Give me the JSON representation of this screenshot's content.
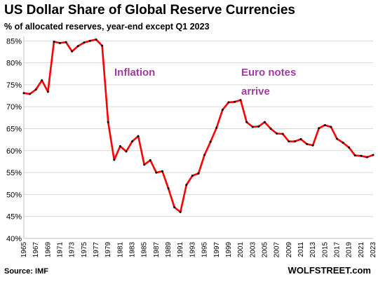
{
  "title": "US Dollar Share of Global  Reserve Currencies",
  "subtitle": "% of allocated reserves, year-end except Q1 2023",
  "source": "Source: IMF",
  "brand": "WOLFSTREET.com",
  "colors": {
    "line": "#ff0000",
    "marker": "#000000",
    "annotation": "#a03ca0",
    "grid": "#d9d9d9"
  },
  "chart_data": {
    "type": "line",
    "title": "US Dollar Share of Global  Reserve Currencies",
    "subtitle": "% of allocated reserves, year-end except Q1 2023",
    "ylim": [
      40,
      86
    ],
    "yticks": [
      "85%",
      "80%",
      "75%",
      "70%",
      "65%",
      "60%",
      "55%",
      "50%",
      "45%",
      "40%"
    ],
    "ytick_values": [
      85,
      80,
      75,
      70,
      65,
      60,
      55,
      50,
      45,
      40
    ],
    "xticks": [
      "1965",
      "1967",
      "1969",
      "1971",
      "1973",
      "1975",
      "1977",
      "1979",
      "1981",
      "1983",
      "1985",
      "1987",
      "1989",
      "1991",
      "1993",
      "1995",
      "1997",
      "1999",
      "2001",
      "2003",
      "2005",
      "2007",
      "2009",
      "2011",
      "2013",
      "2015",
      "2017",
      "2019",
      "2021",
      "2023"
    ],
    "grid": "horizontal",
    "series": [
      {
        "x": [
          1965,
          1966,
          1967,
          1968,
          1969,
          1970,
          1971,
          1972,
          1973,
          1974,
          1975,
          1976,
          1977,
          1978,
          1979,
          1980,
          1981,
          1982,
          1983,
          1984,
          1985,
          1986,
          1987,
          1988,
          1989,
          1990,
          1991,
          1992,
          1993,
          1994,
          1995,
          1996,
          1997,
          1998,
          1999,
          2000,
          2001,
          2002,
          2003,
          2004,
          2005,
          2006,
          2007,
          2008,
          2009,
          2010,
          2011,
          2012,
          2013,
          2014,
          2015,
          2016,
          2017,
          2018,
          2019,
          2020,
          2021,
          2022,
          2023
        ],
        "values": [
          73.1,
          72.9,
          73.9,
          76.0,
          73.4,
          84.8,
          84.5,
          84.7,
          82.6,
          83.8,
          84.6,
          85.0,
          85.3,
          83.9,
          66.5,
          57.9,
          61.0,
          59.8,
          62.1,
          63.3,
          56.8,
          57.8,
          55.0,
          55.3,
          51.4,
          47.1,
          46.0,
          52.2,
          54.3,
          54.8,
          59.0,
          62.0,
          65.2,
          69.3,
          71.0,
          71.1,
          71.5,
          66.5,
          65.4,
          65.5,
          66.5,
          65.0,
          63.9,
          63.8,
          62.1,
          62.1,
          62.6,
          61.5,
          61.2,
          65.1,
          65.8,
          65.4,
          62.7,
          61.8,
          60.7,
          58.9,
          58.8,
          58.5,
          59.0
        ]
      }
    ],
    "annotations": [
      {
        "text": "Inflation"
      },
      {
        "text": "Euro notes"
      },
      {
        "text": "arrive"
      }
    ]
  }
}
